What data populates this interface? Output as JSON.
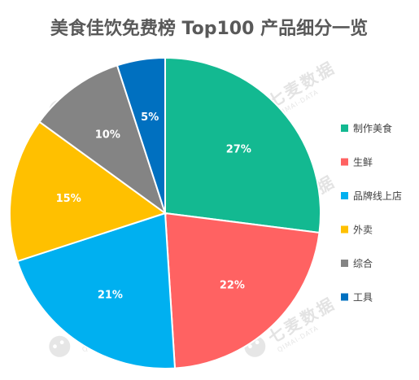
{
  "chart_data": {
    "type": "pie",
    "title": "美食佳饮免费榜 Top100 产品细分一览",
    "categories": [
      "制作美食",
      "生鲜",
      "品牌线上店",
      "外卖",
      "综合",
      "工具"
    ],
    "values": [
      27,
      22,
      21,
      15,
      10,
      5
    ],
    "value_labels": [
      "27%",
      "22%",
      "21%",
      "15%",
      "10%",
      "5%"
    ],
    "colors": [
      "#13B991",
      "#FF6262",
      "#00B0F0",
      "#FFC000",
      "#848484",
      "#0070C0"
    ],
    "unit": "%",
    "start_angle_deg": 0,
    "direction": "clockwise",
    "legend_position": "right"
  },
  "watermark": {
    "text": "七麦数据",
    "subtext": "QIMAI-DATA",
    "icon": "qimai-logo-icon"
  }
}
